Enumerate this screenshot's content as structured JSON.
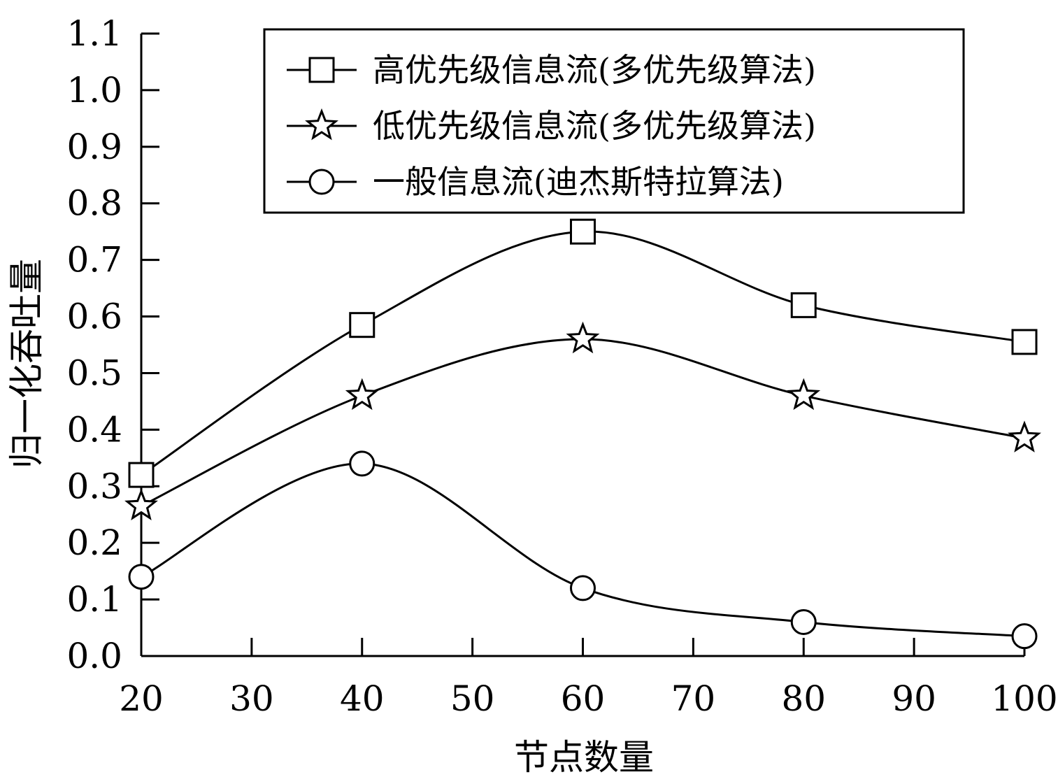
{
  "chart_data": {
    "type": "line",
    "xlabel": "节点数量",
    "ylabel": "归一化吞吐量",
    "x": [
      20,
      40,
      60,
      80,
      100
    ],
    "xlim": [
      20,
      100
    ],
    "ylim": [
      0.0,
      1.1
    ],
    "xticks": [
      "20",
      "30",
      "40",
      "50",
      "60",
      "70",
      "80",
      "90",
      "100"
    ],
    "yticks": [
      "0.0",
      "0.1",
      "0.2",
      "0.3",
      "0.4",
      "0.5",
      "0.6",
      "0.7",
      "0.8",
      "0.9",
      "1.0",
      "1.1"
    ],
    "grid": false,
    "legend_position": "top-right",
    "series": [
      {
        "name": "高优先级信息流(多优先级算法)",
        "marker": "square",
        "values": [
          0.32,
          0.585,
          0.75,
          0.62,
          0.555
        ]
      },
      {
        "name": "低优先级信息流(多优先级算法)",
        "marker": "star",
        "values": [
          0.265,
          0.46,
          0.56,
          0.46,
          0.385
        ]
      },
      {
        "name": "一般信息流(迪杰斯特拉算法)",
        "marker": "circle",
        "values": [
          0.14,
          0.34,
          0.12,
          0.06,
          0.035
        ]
      }
    ]
  }
}
